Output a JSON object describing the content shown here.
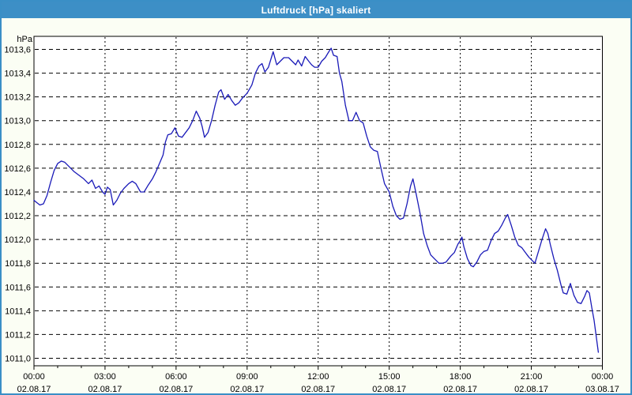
{
  "window": {
    "title": "Luftdruck [hPa] skaliert"
  },
  "chart_data": {
    "type": "line",
    "title": "Luftdruck [hPa] skaliert",
    "ylabel": "hPa",
    "xlabel": "",
    "xlim_hours": [
      0,
      24
    ],
    "ylim": [
      1011.0,
      1013.6
    ],
    "y_tick_step": 0.2,
    "y_tick_labels": [
      "1013,6",
      "1013,4",
      "1013,2",
      "1013,0",
      "1012,8",
      "1012,6",
      "1012,4",
      "1012,2",
      "1012,0",
      "1011,8",
      "1011,6",
      "1011,4",
      "1011,2",
      "1011,0"
    ],
    "x_ticks": [
      {
        "hour": 0,
        "time": "00:00",
        "date": "02.08.17"
      },
      {
        "hour": 3,
        "time": "03:00",
        "date": "02.08.17"
      },
      {
        "hour": 6,
        "time": "06:00",
        "date": "02.08.17"
      },
      {
        "hour": 9,
        "time": "09:00",
        "date": "02.08.17"
      },
      {
        "hour": 12,
        "time": "12:00",
        "date": "02.08.17"
      },
      {
        "hour": 15,
        "time": "15:00",
        "date": "02.08.17"
      },
      {
        "hour": 18,
        "time": "18:00",
        "date": "02.08.17"
      },
      {
        "hour": 21,
        "time": "21:00",
        "date": "02.08.17"
      },
      {
        "hour": 24,
        "time": "00:00",
        "date": "03.08.17"
      }
    ],
    "x_minor_tick_hours": 1,
    "grid": {
      "horizontal": "dashed",
      "vertical": "dotted",
      "on": true
    },
    "legend": {
      "visible": false
    },
    "colors": {
      "titlebar": "#3d8fc6",
      "window_border": "#3a8fc6",
      "background": "#fbfef4",
      "plot_background": "#ffffff",
      "grid": "#000000",
      "axis": "#000000",
      "text": "#000000",
      "line": "#1a1ab8"
    },
    "series": [
      {
        "name": "Luftdruck",
        "color": "#1a1ab8",
        "points": [
          [
            0,
            1012.33
          ],
          [
            0.12,
            1012.31
          ],
          [
            0.25,
            1012.29
          ],
          [
            0.4,
            1012.3
          ],
          [
            0.55,
            1012.37
          ],
          [
            0.7,
            1012.48
          ],
          [
            0.85,
            1012.58
          ],
          [
            1,
            1012.64
          ],
          [
            1.15,
            1012.66
          ],
          [
            1.3,
            1012.65
          ],
          [
            1.5,
            1012.61
          ],
          [
            1.7,
            1012.57
          ],
          [
            1.9,
            1012.54
          ],
          [
            2.1,
            1012.51
          ],
          [
            2.3,
            1012.47
          ],
          [
            2.45,
            1012.5
          ],
          [
            2.6,
            1012.43
          ],
          [
            2.75,
            1012.45
          ],
          [
            2.9,
            1012.4
          ],
          [
            3,
            1012.38
          ],
          [
            3.1,
            1012.44
          ],
          [
            3.22,
            1012.42
          ],
          [
            3.35,
            1012.29
          ],
          [
            3.5,
            1012.33
          ],
          [
            3.65,
            1012.39
          ],
          [
            3.8,
            1012.43
          ],
          [
            4,
            1012.47
          ],
          [
            4.15,
            1012.49
          ],
          [
            4.3,
            1012.47
          ],
          [
            4.5,
            1012.4
          ],
          [
            4.65,
            1012.4
          ],
          [
            4.8,
            1012.45
          ],
          [
            5,
            1012.51
          ],
          [
            5.15,
            1012.57
          ],
          [
            5.3,
            1012.64
          ],
          [
            5.45,
            1012.71
          ],
          [
            5.55,
            1012.82
          ],
          [
            5.65,
            1012.88
          ],
          [
            5.8,
            1012.89
          ],
          [
            5.95,
            1012.94
          ],
          [
            6.1,
            1012.87
          ],
          [
            6.25,
            1012.86
          ],
          [
            6.4,
            1012.9
          ],
          [
            6.55,
            1012.94
          ],
          [
            6.7,
            1013
          ],
          [
            6.85,
            1013.08
          ],
          [
            7,
            1013.02
          ],
          [
            7.1,
            1012.95
          ],
          [
            7.2,
            1012.86
          ],
          [
            7.35,
            1012.9
          ],
          [
            7.5,
            1013
          ],
          [
            7.65,
            1013.13
          ],
          [
            7.8,
            1013.24
          ],
          [
            7.9,
            1013.26
          ],
          [
            8.05,
            1013.18
          ],
          [
            8.2,
            1013.22
          ],
          [
            8.35,
            1013.17
          ],
          [
            8.5,
            1013.13
          ],
          [
            8.65,
            1013.15
          ],
          [
            8.8,
            1013.19
          ],
          [
            9,
            1013.23
          ],
          [
            9.2,
            1013.3
          ],
          [
            9.35,
            1013.4
          ],
          [
            9.5,
            1013.46
          ],
          [
            9.63,
            1013.48
          ],
          [
            9.75,
            1013.41
          ],
          [
            9.9,
            1013.45
          ],
          [
            10.1,
            1013.58
          ],
          [
            10.25,
            1013.47
          ],
          [
            10.4,
            1013.5
          ],
          [
            10.55,
            1013.53
          ],
          [
            10.75,
            1013.53
          ],
          [
            10.9,
            1013.5
          ],
          [
            11.05,
            1013.47
          ],
          [
            11.15,
            1013.51
          ],
          [
            11.3,
            1013.46
          ],
          [
            11.45,
            1013.54
          ],
          [
            11.6,
            1013.5
          ],
          [
            11.72,
            1013.47
          ],
          [
            11.85,
            1013.45
          ],
          [
            12,
            1013.45
          ],
          [
            12.15,
            1013.5
          ],
          [
            12.3,
            1013.53
          ],
          [
            12.45,
            1013.58
          ],
          [
            12.55,
            1013.61
          ],
          [
            12.65,
            1013.55
          ],
          [
            12.8,
            1013.54
          ],
          [
            12.9,
            1013.4
          ],
          [
            13,
            1013.33
          ],
          [
            13.15,
            1013.13
          ],
          [
            13.3,
            1013
          ],
          [
            13.45,
            1013
          ],
          [
            13.6,
            1013.07
          ],
          [
            13.75,
            1013
          ],
          [
            13.9,
            1012.98
          ],
          [
            14.05,
            1012.87
          ],
          [
            14.2,
            1012.78
          ],
          [
            14.35,
            1012.75
          ],
          [
            14.5,
            1012.74
          ],
          [
            14.65,
            1012.6
          ],
          [
            14.8,
            1012.47
          ],
          [
            15,
            1012.4
          ],
          [
            15.15,
            1012.28
          ],
          [
            15.3,
            1012.2
          ],
          [
            15.45,
            1012.17
          ],
          [
            15.6,
            1012.18
          ],
          [
            15.75,
            1012.3
          ],
          [
            15.9,
            1012.45
          ],
          [
            16,
            1012.51
          ],
          [
            16.15,
            1012.37
          ],
          [
            16.3,
            1012.22
          ],
          [
            16.45,
            1012.05
          ],
          [
            16.6,
            1011.95
          ],
          [
            16.75,
            1011.87
          ],
          [
            16.9,
            1011.84
          ],
          [
            17.1,
            1011.8
          ],
          [
            17.25,
            1011.8
          ],
          [
            17.4,
            1011.81
          ],
          [
            17.6,
            1011.86
          ],
          [
            17.75,
            1011.89
          ],
          [
            17.9,
            1011.96
          ],
          [
            18,
            1011.99
          ],
          [
            18.07,
            1012.02
          ],
          [
            18.15,
            1011.94
          ],
          [
            18.3,
            1011.84
          ],
          [
            18.45,
            1011.78
          ],
          [
            18.55,
            1011.77
          ],
          [
            18.7,
            1011.81
          ],
          [
            18.85,
            1011.87
          ],
          [
            19,
            1011.9
          ],
          [
            19.15,
            1011.91
          ],
          [
            19.3,
            1011.99
          ],
          [
            19.45,
            1012.05
          ],
          [
            19.6,
            1012.07
          ],
          [
            19.75,
            1012.12
          ],
          [
            19.9,
            1012.18
          ],
          [
            20,
            1012.21
          ],
          [
            20.15,
            1012.12
          ],
          [
            20.3,
            1012.02
          ],
          [
            20.45,
            1011.95
          ],
          [
            20.6,
            1011.93
          ],
          [
            20.75,
            1011.89
          ],
          [
            20.9,
            1011.85
          ],
          [
            21.05,
            1011.82
          ],
          [
            21.15,
            1011.8
          ],
          [
            21.3,
            1011.9
          ],
          [
            21.45,
            1012
          ],
          [
            21.6,
            1012.09
          ],
          [
            21.7,
            1012.05
          ],
          [
            21.8,
            1011.96
          ],
          [
            21.95,
            1011.84
          ],
          [
            22.1,
            1011.74
          ],
          [
            22.25,
            1011.62
          ],
          [
            22.35,
            1011.55
          ],
          [
            22.5,
            1011.54
          ],
          [
            22.65,
            1011.63
          ],
          [
            22.8,
            1011.53
          ],
          [
            22.95,
            1011.47
          ],
          [
            23.1,
            1011.46
          ],
          [
            23.25,
            1011.52
          ],
          [
            23.35,
            1011.57
          ],
          [
            23.45,
            1011.55
          ],
          [
            23.55,
            1011.43
          ],
          [
            23.65,
            1011.32
          ],
          [
            23.75,
            1011.17
          ],
          [
            23.83,
            1011.05
          ]
        ]
      }
    ]
  }
}
